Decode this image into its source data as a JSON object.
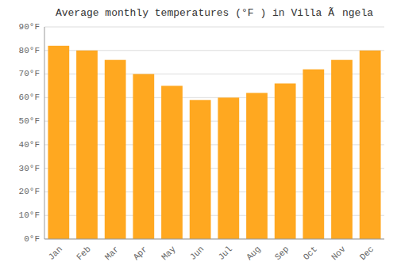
{
  "chart_data": {
    "type": "bar",
    "title": "Average monthly temperatures (°F ) in Villa Ãngela",
    "categories": [
      "Jan",
      "Feb",
      "Mar",
      "Apr",
      "May",
      "Jun",
      "Jul",
      "Aug",
      "Sep",
      "Oct",
      "Nov",
      "Dec"
    ],
    "values": [
      82,
      80,
      76,
      70,
      65,
      59,
      60,
      62,
      66,
      72,
      76,
      80
    ],
    "color": "#FFA820",
    "ylim": [
      0,
      90
    ],
    "yticks": [
      {
        "value": 0,
        "label": "0°F"
      },
      {
        "value": 10,
        "label": "10°F"
      },
      {
        "value": 20,
        "label": "20°F"
      },
      {
        "value": 30,
        "label": "30°F"
      },
      {
        "value": 40,
        "label": "40°F"
      },
      {
        "value": 50,
        "label": "50°F"
      },
      {
        "value": 60,
        "label": "60°F"
      },
      {
        "value": 70,
        "label": "70°F"
      },
      {
        "value": 80,
        "label": "80°F"
      },
      {
        "value": 90,
        "label": "90°F"
      }
    ],
    "grid": true
  }
}
